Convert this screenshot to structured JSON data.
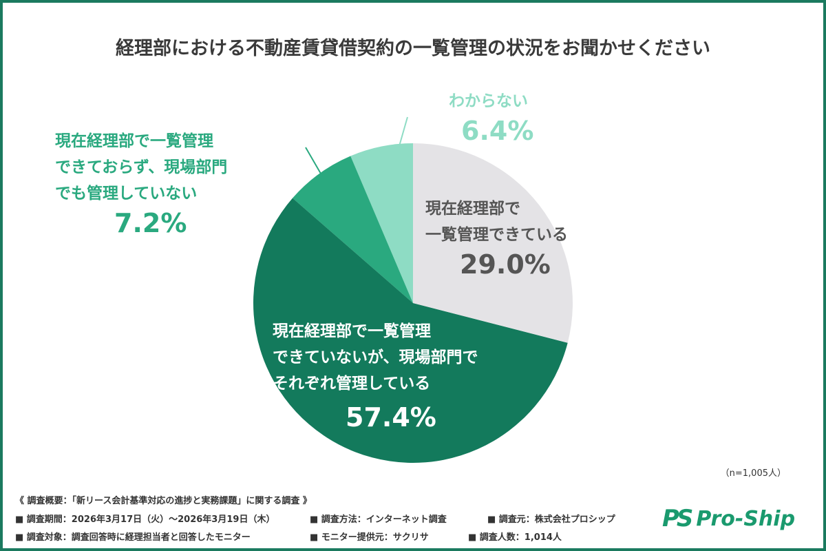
{
  "title": "経理部における不動産賃貸借契約の一覧管理の状況をお聞かせください",
  "chart_data": {
    "type": "pie",
    "title": "経理部における不動産賃貸借契約の一覧管理の状況をお聞かせください",
    "slices": [
      {
        "label": "現在経理部で一覧管理できている",
        "value": 29.0,
        "pct": "29.0%",
        "color": "#e4e3e6"
      },
      {
        "label": "現在経理部で一覧管理できていないが、現場部門でそれぞれ管理している",
        "value": 57.4,
        "pct": "57.4%",
        "color": "#137a5c"
      },
      {
        "label": "現在経理部で一覧管理できておらず、現場部門でも管理していない",
        "value": 7.2,
        "pct": "7.2%",
        "color": "#2aa97f"
      },
      {
        "label": "わからない",
        "value": 6.4,
        "pct": "6.4%",
        "color": "#8edcc4"
      }
    ],
    "start": "top",
    "direction": "clockwise"
  },
  "labels": {
    "s0": [
      "現在経理部で",
      "一覧管理できている"
    ],
    "s1": [
      "現在経理部で一覧管理",
      "できていないが、現場部門で",
      "それぞれ管理している"
    ],
    "s2": [
      "現在経理部で一覧管理",
      "できておらず、現場部門",
      "でも管理していない"
    ],
    "s3": [
      "わからない"
    ]
  },
  "n": "（n=1,005人）",
  "footer": [
    "《 調査概要：「新リース会計基準対応の進捗と実務課題」に関する調査 》",
    "■ 調査期間：2026年3月17日（火）～2026年3月19日（木）",
    "■ 調査方法：インターネット調査",
    "■ 調査元：株式会社プロシップ",
    "■ 調査対象：調査回答時に経理担当者と回答したモニター",
    "■ モニター提供元：サクリサ",
    "■ 調査人数：1,014人"
  ],
  "logo": {
    "mark": "PS",
    "text": "Pro-Ship"
  }
}
